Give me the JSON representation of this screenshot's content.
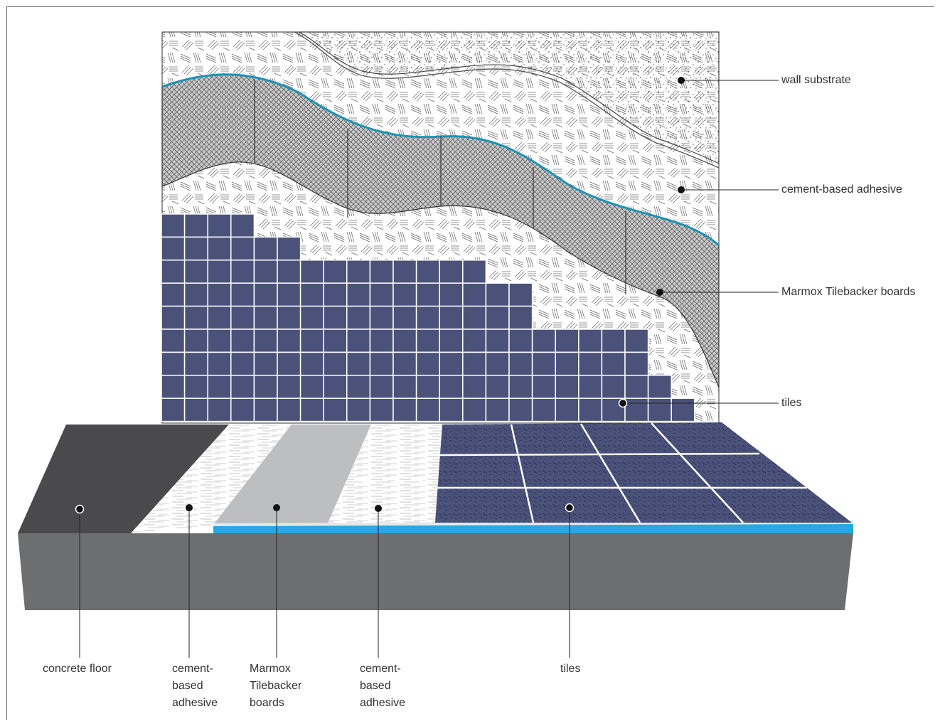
{
  "wall_labels": {
    "wall_substrate": "wall substrate",
    "cement_adhesive": "cement-based adhesive",
    "tilebacker": "Marmox Tilebacker boards",
    "tiles": "tiles"
  },
  "floor_labels": {
    "concrete_floor": "concrete floor",
    "cement_adhesive_1": "cement-\nbased\nadhesive",
    "tilebacker": "Marmox\nTilebacker\nboards",
    "cement_adhesive_2": "cement-\nbased\nadhesive",
    "tiles": "tiles"
  },
  "colors": {
    "tile_blue": "#4b527a",
    "concrete_dark": "#4a4a4c",
    "concrete_side": "#6d6e70",
    "board_grey": "#bcbec0",
    "board_edge_blue": "#29a8e0",
    "wall_edge_teal": "#1b93b5",
    "hatch": "#555555"
  }
}
